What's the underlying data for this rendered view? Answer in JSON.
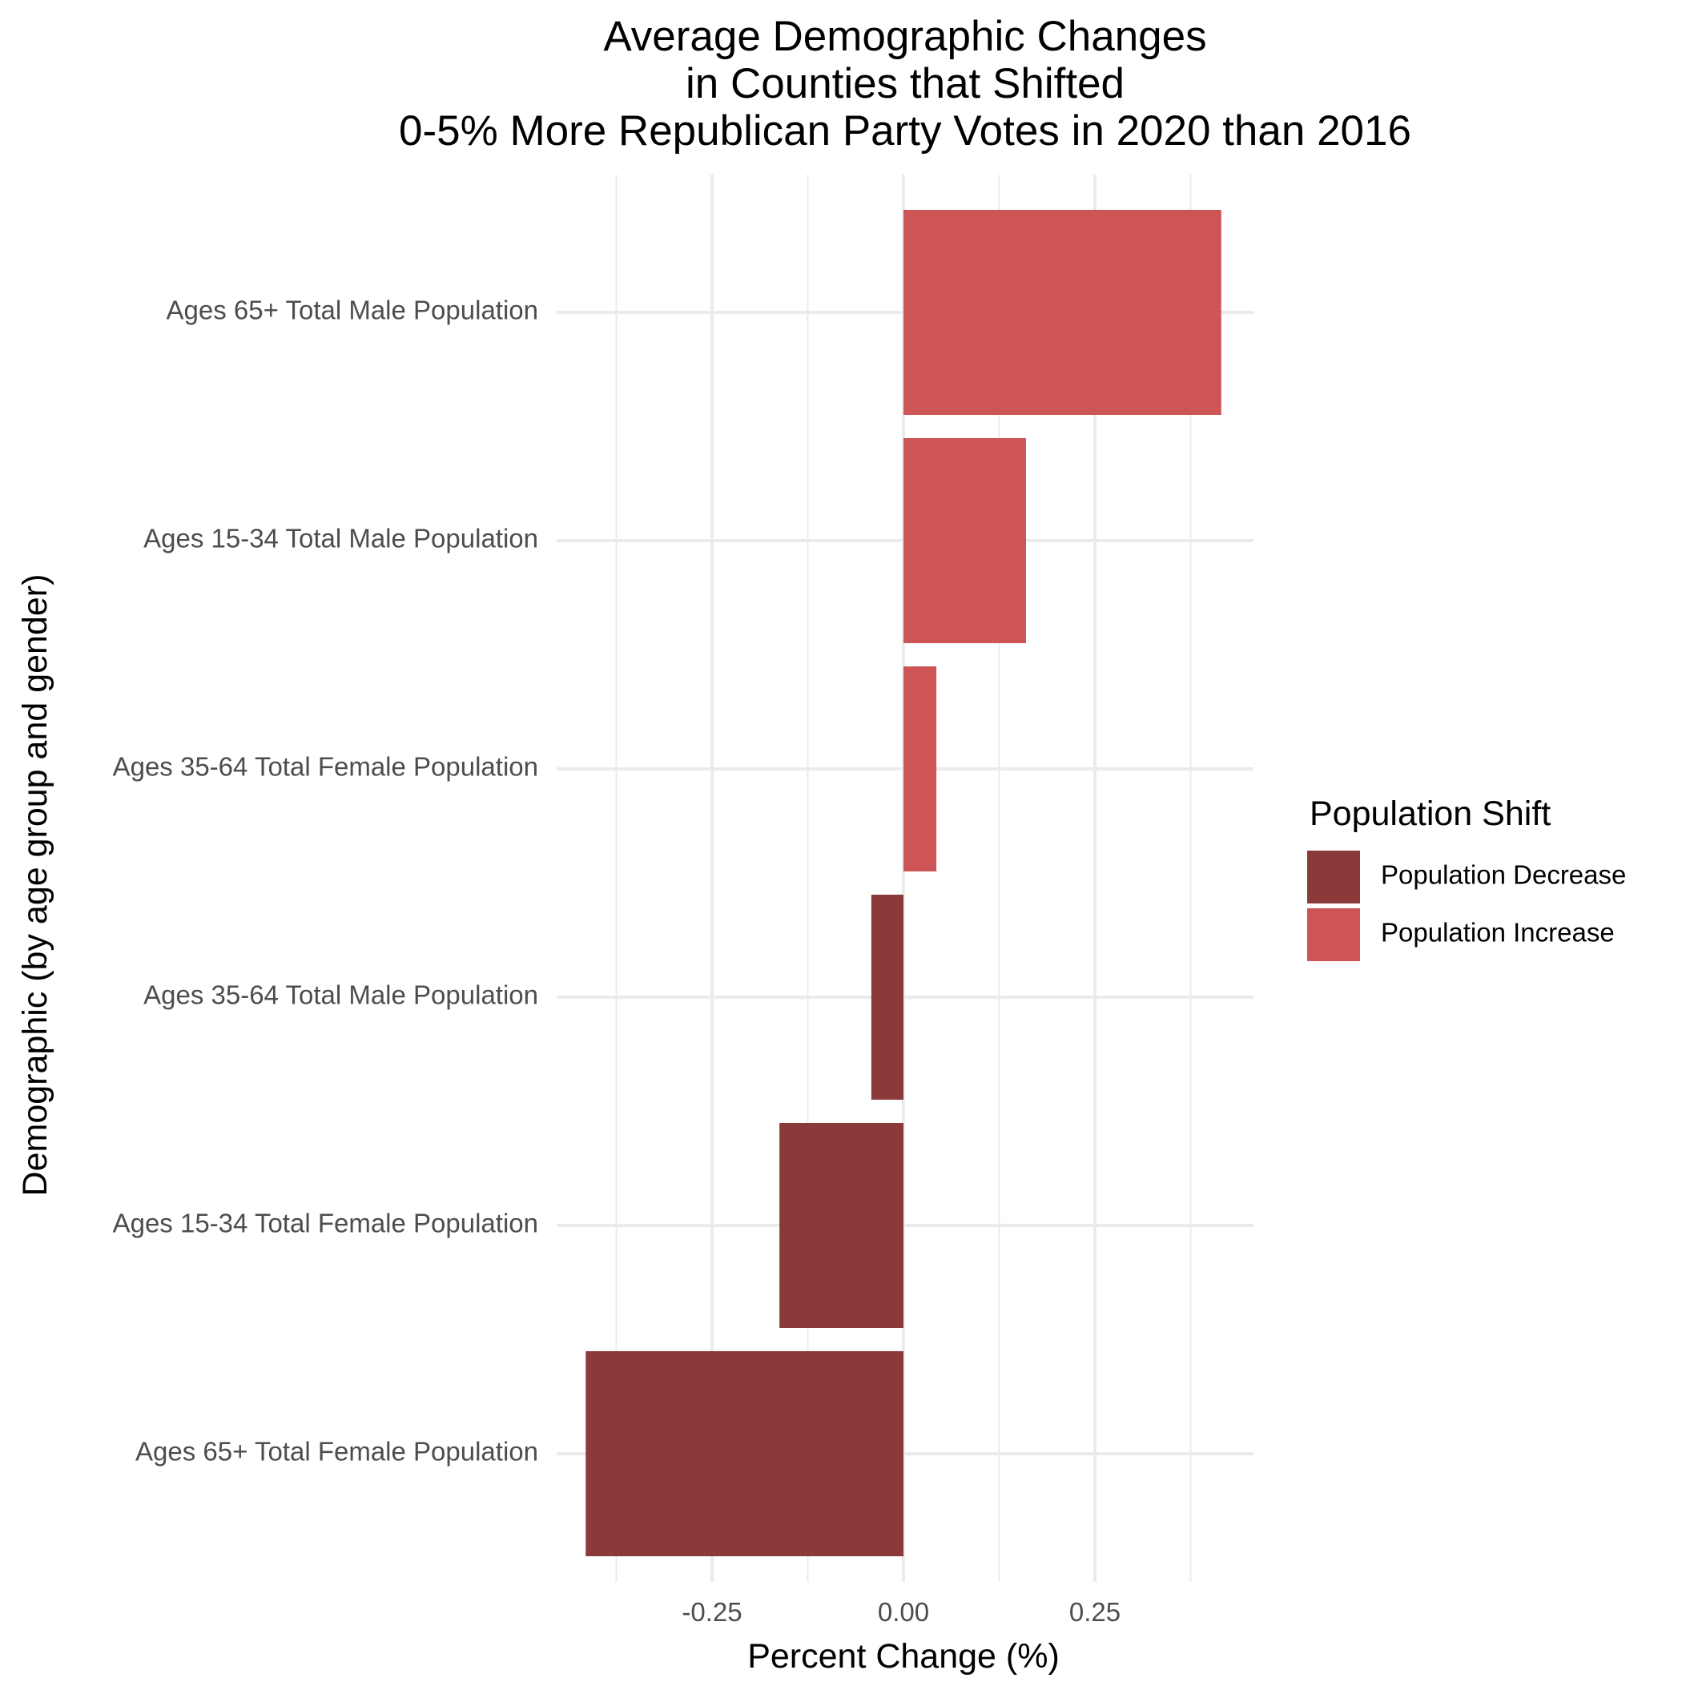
{
  "chart_data": {
    "type": "bar",
    "orientation": "horizontal",
    "title": [
      "Average Demographic Changes",
      "in Counties that Shifted",
      "0-5% More Republican Party Votes in 2020 than 2016"
    ],
    "xlabel": "Percent Change (%)",
    "ylabel": "Demographic (by age group and gender)",
    "xlim": [
      -0.5,
      0.5
    ],
    "xticks": [
      -0.25,
      0.0,
      0.25
    ],
    "xtick_labels": [
      "-0.25",
      "0.00",
      "0.25"
    ],
    "grid": true,
    "categories": [
      "Ages 65+ Total Male Population",
      "Ages 15-34 Total Male Population",
      "Ages 35-64 Total Female Population",
      "Ages 35-64 Total Male Population",
      "Ages 15-34 Total Female Population",
      "Ages 65+ Total Female Population"
    ],
    "values": [
      0.415,
      0.16,
      0.043,
      -0.042,
      -0.162,
      -0.415
    ],
    "groups": [
      "Population Increase",
      "Population Increase",
      "Population Increase",
      "Population Decrease",
      "Population Decrease",
      "Population Decrease"
    ],
    "legend": {
      "title": "Population Shift",
      "position": "right",
      "entries": [
        {
          "label": "Population Decrease",
          "color": "#8b3a3a"
        },
        {
          "label": "Population Increase",
          "color": "#cd5555"
        }
      ]
    }
  }
}
